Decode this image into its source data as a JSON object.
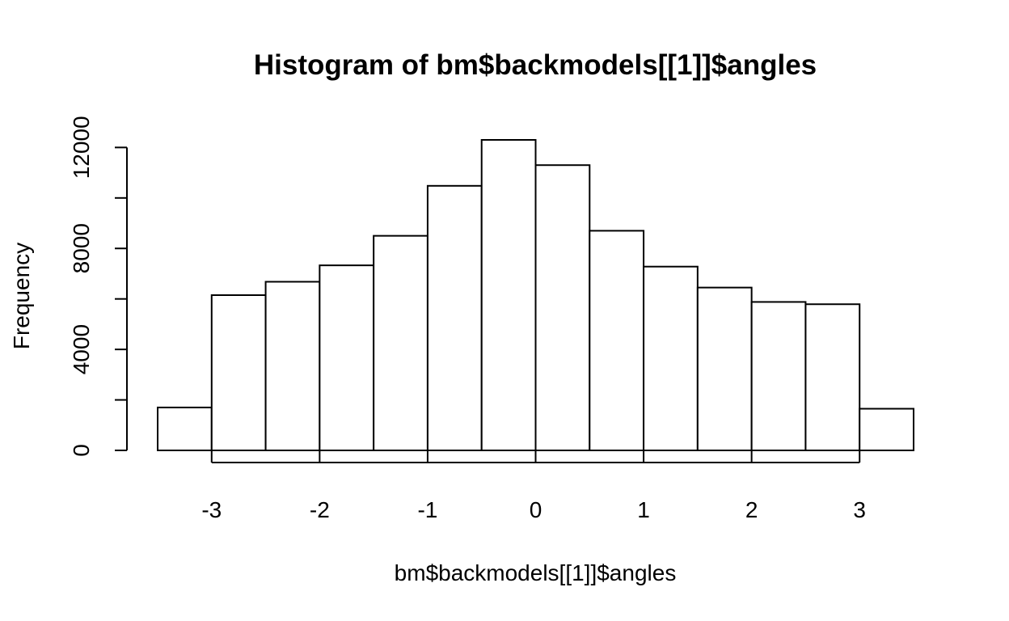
{
  "chart_data": {
    "type": "bar",
    "title": "Histogram of bm$backmodels[[1]]$angles",
    "xlabel": "bm$backmodels[[1]]$angles",
    "ylabel": "Frequency",
    "bin_edges": [
      -3.5,
      -3.0,
      -2.5,
      -2.0,
      -1.5,
      -1.0,
      -0.5,
      0.0,
      0.5,
      1.0,
      1.5,
      2.0,
      2.5,
      3.0,
      3.5
    ],
    "values": [
      1700,
      6150,
      6680,
      7330,
      8500,
      10480,
      12300,
      11300,
      8700,
      7280,
      6450,
      5880,
      5790,
      1650
    ],
    "xlim": [
      -3.5,
      3.5
    ],
    "ylim": [
      0,
      12300
    ],
    "x_ticks": [
      -3,
      -2,
      -1,
      0,
      1,
      2,
      3
    ],
    "x_tick_labels": [
      "-3",
      "-2",
      "-1",
      "0",
      "1",
      "2",
      "3"
    ],
    "y_ticks": [
      0,
      2000,
      4000,
      6000,
      8000,
      10000,
      12000
    ],
    "y_tick_labels": [
      "0",
      "",
      "4000",
      "",
      "8000",
      "",
      "12000"
    ],
    "bar_fill": "#ffffff",
    "bar_stroke": "#000000",
    "grid": false,
    "legend": false
  }
}
